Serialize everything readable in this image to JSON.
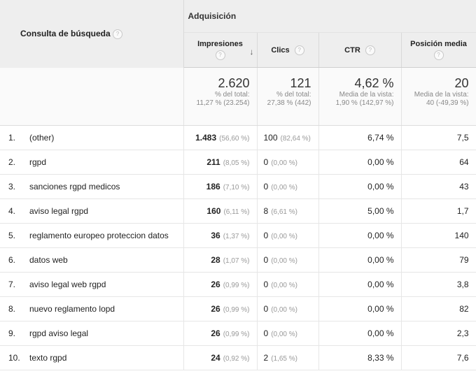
{
  "header": {
    "query_label": "Consulta de búsqueda",
    "group_label": "Adquisición",
    "columns": {
      "impresiones": "Impresiones",
      "clics": "Clics",
      "ctr": "CTR",
      "posicion": "Posición media"
    },
    "help_glyph": "?",
    "sort_glyph": "↓"
  },
  "totals": {
    "impresiones": {
      "value": "2.620",
      "line1": "% del total:",
      "line2": "11,27 % (23.254)"
    },
    "clics": {
      "value": "121",
      "line1": "% del total:",
      "line2": "27,38 % (442)"
    },
    "ctr": {
      "value": "4,62 %",
      "line1": "Media de la vista:",
      "line2": "1,90 % (142,97 %)"
    },
    "posicion": {
      "value": "20",
      "line1": "Media de la vista:",
      "line2": "40 (-49,39 %)"
    }
  },
  "rows": [
    {
      "index": "1.",
      "query": "(other)",
      "impresiones": "1.483",
      "impresiones_pct": "(56,60 %)",
      "clics": "100",
      "clics_pct": "(82,64 %)",
      "ctr": "6,74 %",
      "posicion": "7,5"
    },
    {
      "index": "2.",
      "query": "rgpd",
      "impresiones": "211",
      "impresiones_pct": "(8,05 %)",
      "clics": "0",
      "clics_pct": "(0,00 %)",
      "ctr": "0,00 %",
      "posicion": "64"
    },
    {
      "index": "3.",
      "query": "sanciones rgpd medicos",
      "impresiones": "186",
      "impresiones_pct": "(7,10 %)",
      "clics": "0",
      "clics_pct": "(0,00 %)",
      "ctr": "0,00 %",
      "posicion": "43"
    },
    {
      "index": "4.",
      "query": "aviso legal rgpd",
      "impresiones": "160",
      "impresiones_pct": "(6,11 %)",
      "clics": "8",
      "clics_pct": "(6,61 %)",
      "ctr": "5,00 %",
      "posicion": "1,7"
    },
    {
      "index": "5.",
      "query": "reglamento europeo proteccion datos",
      "impresiones": "36",
      "impresiones_pct": "(1,37 %)",
      "clics": "0",
      "clics_pct": "(0,00 %)",
      "ctr": "0,00 %",
      "posicion": "140"
    },
    {
      "index": "6.",
      "query": "datos web",
      "impresiones": "28",
      "impresiones_pct": "(1,07 %)",
      "clics": "0",
      "clics_pct": "(0,00 %)",
      "ctr": "0,00 %",
      "posicion": "79"
    },
    {
      "index": "7.",
      "query": "aviso legal web rgpd",
      "impresiones": "26",
      "impresiones_pct": "(0,99 %)",
      "clics": "0",
      "clics_pct": "(0,00 %)",
      "ctr": "0,00 %",
      "posicion": "3,8"
    },
    {
      "index": "8.",
      "query": "nuevo reglamento lopd",
      "impresiones": "26",
      "impresiones_pct": "(0,99 %)",
      "clics": "0",
      "clics_pct": "(0,00 %)",
      "ctr": "0,00 %",
      "posicion": "82"
    },
    {
      "index": "9.",
      "query": "rgpd aviso legal",
      "impresiones": "26",
      "impresiones_pct": "(0,99 %)",
      "clics": "0",
      "clics_pct": "(0,00 %)",
      "ctr": "0,00 %",
      "posicion": "2,3"
    },
    {
      "index": "10.",
      "query": "texto rgpd",
      "impresiones": "24",
      "impresiones_pct": "(0,92 %)",
      "clics": "2",
      "clics_pct": "(1,65 %)",
      "ctr": "8,33 %",
      "posicion": "7,6"
    }
  ]
}
